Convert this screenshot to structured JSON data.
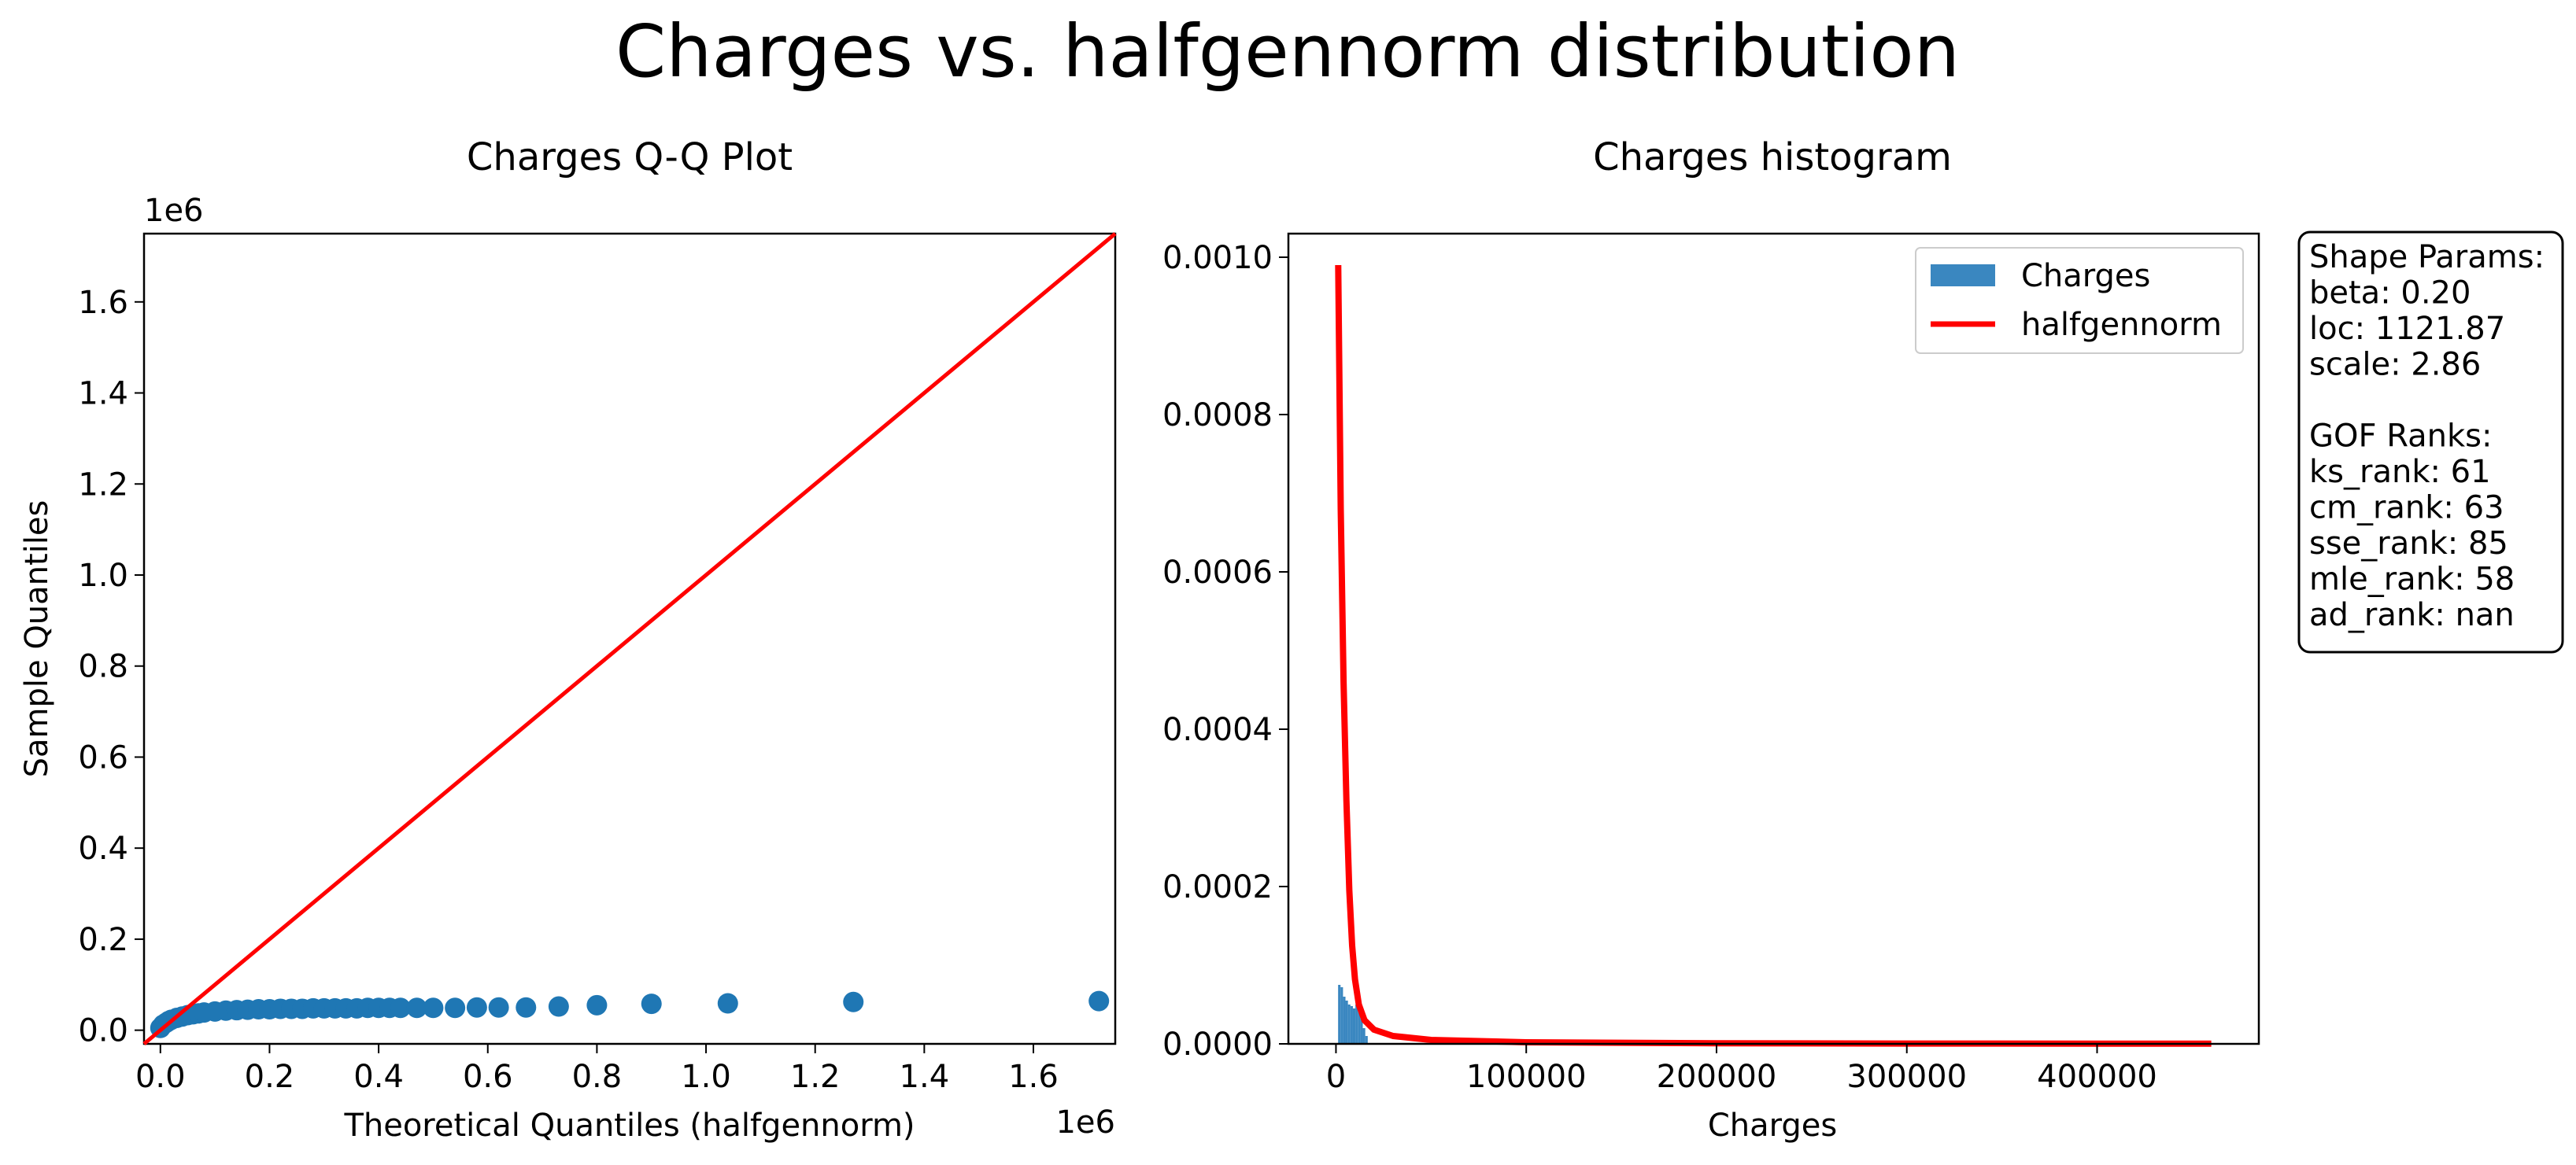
{
  "figure": {
    "suptitle": "Charges vs. halfgennorm distribution"
  },
  "qq": {
    "title": "Charges Q-Q Plot",
    "xlabel": "Theoretical Quantiles (halfgennorm)",
    "ylabel": "Sample Quantiles",
    "x_offset_label": "1e6",
    "y_offset_label": "1e6",
    "xticks": [
      "0.0",
      "0.2",
      "0.4",
      "0.6",
      "0.8",
      "1.0",
      "1.2",
      "1.4",
      "1.6"
    ],
    "yticks": [
      "0.0",
      "0.2",
      "0.4",
      "0.6",
      "0.8",
      "1.0",
      "1.2",
      "1.4",
      "1.6"
    ]
  },
  "hist": {
    "title": "Charges histogram",
    "xlabel": "Charges",
    "xticks": [
      "0",
      "100000",
      "200000",
      "300000",
      "400000"
    ],
    "yticks": [
      "0.0000",
      "0.0002",
      "0.0004",
      "0.0006",
      "0.0008",
      "0.0010"
    ],
    "legend": [
      "Charges",
      "halfgennorm"
    ]
  },
  "params_box": {
    "lines": [
      "Shape Params:",
      "beta: 0.20",
      "loc: 1121.87",
      "scale: 2.86",
      "",
      "GOF Ranks:",
      "ks_rank: 61",
      "cm_rank: 63",
      "sse_rank: 85",
      "mle_rank: 58",
      "ad_rank: nan"
    ]
  },
  "colors": {
    "points": "#1f77b4",
    "bars": "#3a87c0",
    "fit_line": "#ff0000",
    "ref_line": "#ff0000"
  },
  "chart_data": [
    {
      "type": "scatter",
      "title": "Charges Q-Q Plot",
      "xlabel": "Theoretical Quantiles (halfgennorm)",
      "ylabel": "Sample Quantiles",
      "xlim": [
        -0.03,
        1.75
      ],
      "ylim": [
        -0.03,
        1.75
      ],
      "scale_factor": "1e6",
      "reference_line": {
        "x": [
          -0.03,
          1.75
        ],
        "y": [
          -0.03,
          1.75
        ]
      },
      "points": {
        "x": [
          0.0,
          0.005,
          0.01,
          0.015,
          0.02,
          0.03,
          0.04,
          0.05,
          0.06,
          0.07,
          0.08,
          0.1,
          0.12,
          0.14,
          0.16,
          0.18,
          0.2,
          0.22,
          0.24,
          0.26,
          0.28,
          0.3,
          0.32,
          0.34,
          0.36,
          0.38,
          0.4,
          0.42,
          0.44,
          0.47,
          0.5,
          0.54,
          0.58,
          0.62,
          0.67,
          0.73,
          0.8,
          0.9,
          1.04,
          1.27,
          1.72
        ],
        "y": [
          0.005,
          0.012,
          0.016,
          0.02,
          0.023,
          0.027,
          0.03,
          0.033,
          0.035,
          0.037,
          0.039,
          0.041,
          0.043,
          0.044,
          0.045,
          0.046,
          0.046,
          0.047,
          0.047,
          0.047,
          0.048,
          0.048,
          0.048,
          0.048,
          0.048,
          0.049,
          0.049,
          0.049,
          0.049,
          0.049,
          0.049,
          0.049,
          0.05,
          0.05,
          0.05,
          0.052,
          0.055,
          0.058,
          0.059,
          0.062,
          0.064
        ]
      }
    },
    {
      "type": "bar",
      "title": "Charges histogram",
      "xlabel": "Charges",
      "xlim": [
        -25000,
        485000
      ],
      "ylim": [
        0,
        0.00103
      ],
      "histogram": {
        "bin_edges": [
          1122,
          2400,
          3700,
          5000,
          6300,
          7600,
          8900,
          10200,
          11500,
          12800,
          14100,
          15400,
          16700
        ],
        "density": [
          7.5e-05,
          7.2e-05,
          6e-05,
          5.5e-05,
          5e-05,
          4.8e-05,
          4.5e-05,
          5e-05,
          4.2e-05,
          3.5e-05,
          2e-05,
          1e-05
        ]
      },
      "series": [
        {
          "name": "halfgennorm",
          "x": [
            1200,
            2500,
            4000,
            5500,
            7000,
            8500,
            10000,
            12000,
            15000,
            20000,
            30000,
            50000,
            100000,
            200000,
            300000,
            460000
          ],
          "y": [
            0.00099,
            0.00068,
            0.00046,
            0.00031,
            0.000195,
            0.000125,
            8.2e-05,
            5e-05,
            3e-05,
            1.8e-05,
            1e-05,
            5e-06,
            2e-06,
            8e-07,
            4e-07,
            2e-07
          ]
        }
      ],
      "legend": [
        "Charges",
        "halfgennorm"
      ],
      "legend_position": "upper right"
    }
  ]
}
